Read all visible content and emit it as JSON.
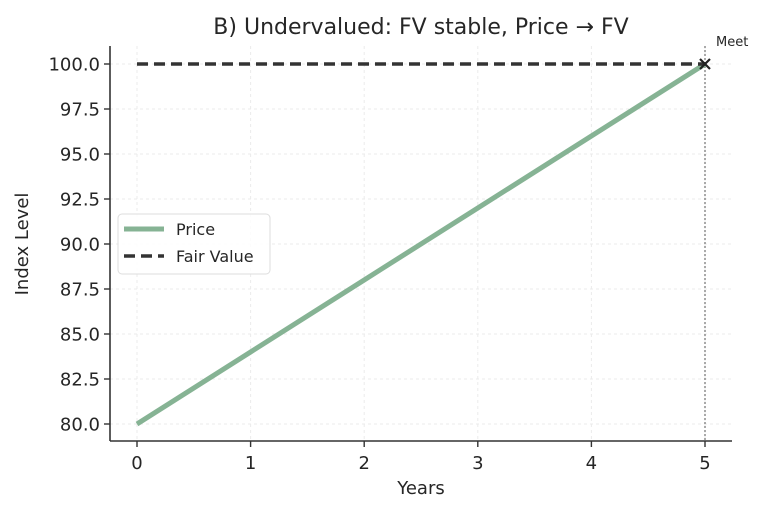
{
  "chart_data": {
    "type": "line",
    "title": "B) Undervalued: FV stable, Price → FV",
    "xlabel": "Years",
    "ylabel": "Index Level",
    "x": [
      0,
      1,
      2,
      3,
      4,
      5
    ],
    "xlim": [
      -0.25,
      5.25
    ],
    "ylim": [
      79.0,
      101.0
    ],
    "xticks": [
      "0",
      "1",
      "2",
      "3",
      "4",
      "5"
    ],
    "yticks": [
      "80.0",
      "82.5",
      "85.0",
      "87.5",
      "90.0",
      "92.5",
      "95.0",
      "97.5",
      "100.0"
    ],
    "grid": true,
    "legend_position": "center left",
    "series": [
      {
        "name": "Price",
        "values": [
          80,
          84,
          88,
          92,
          96,
          100
        ],
        "color": "#86b394",
        "style": "solid"
      },
      {
        "name": "Fair Value",
        "values": [
          100,
          100,
          100,
          100,
          100,
          100
        ],
        "color": "#333333",
        "style": "dashed"
      }
    ],
    "annotations": [
      {
        "text": "Meet",
        "x": 5,
        "y": 100,
        "marker": "x",
        "vline_x": 5
      }
    ]
  }
}
